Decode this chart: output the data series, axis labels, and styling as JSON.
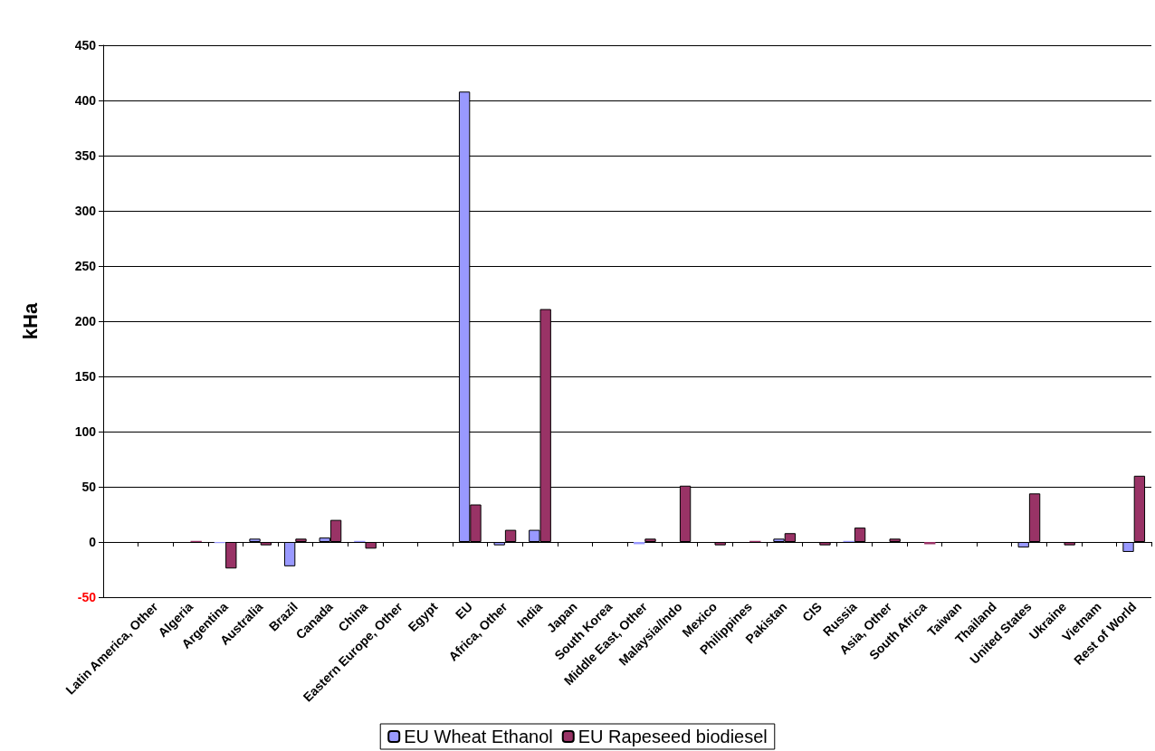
{
  "chart_data": {
    "type": "bar",
    "ylabel": "kHa",
    "categories": [
      null,
      "Latin America, Other",
      "Algeria",
      "Argentina",
      "Australia",
      "Brazil",
      "Canada",
      "China",
      "Eastern Europe, Other",
      "Egypt",
      "EU",
      "Africa, Other",
      "India",
      "Japan",
      "South Korea",
      "Middle East, Other",
      "Malaysia/Indo",
      "Mexico",
      "Philippines",
      "Pakistan",
      "CIS",
      "Russia",
      "Asia, Other",
      "South Africa",
      "Taiwan",
      "Thailand",
      "United States",
      "Ukraine",
      "Vietnam",
      "Rest of World"
    ],
    "series": [
      {
        "name": "EU Wheat Ethanol",
        "color": "#9999ff",
        "values": [
          null,
          null,
          null,
          -1,
          3,
          -22,
          4,
          1,
          null,
          null,
          408,
          -3,
          11,
          null,
          null,
          -2,
          null,
          null,
          null,
          3,
          null,
          1,
          null,
          null,
          null,
          null,
          -5,
          null,
          null,
          -9
        ]
      },
      {
        "name": "EU Rapeseed biodiesel",
        "color": "#993366",
        "values": [
          null,
          null,
          1,
          -24,
          -3,
          3,
          20,
          -6,
          null,
          null,
          34,
          11,
          211,
          null,
          null,
          3,
          51,
          -3,
          1,
          8,
          -3,
          13,
          3,
          -2,
          null,
          null,
          44,
          -3,
          null,
          60
        ]
      }
    ],
    "ylim": [
      -50,
      450
    ],
    "yticks": [
      -50,
      0,
      50,
      100,
      150,
      200,
      250,
      300,
      350,
      400,
      450
    ],
    "grid": "y",
    "legend": "bottom"
  }
}
